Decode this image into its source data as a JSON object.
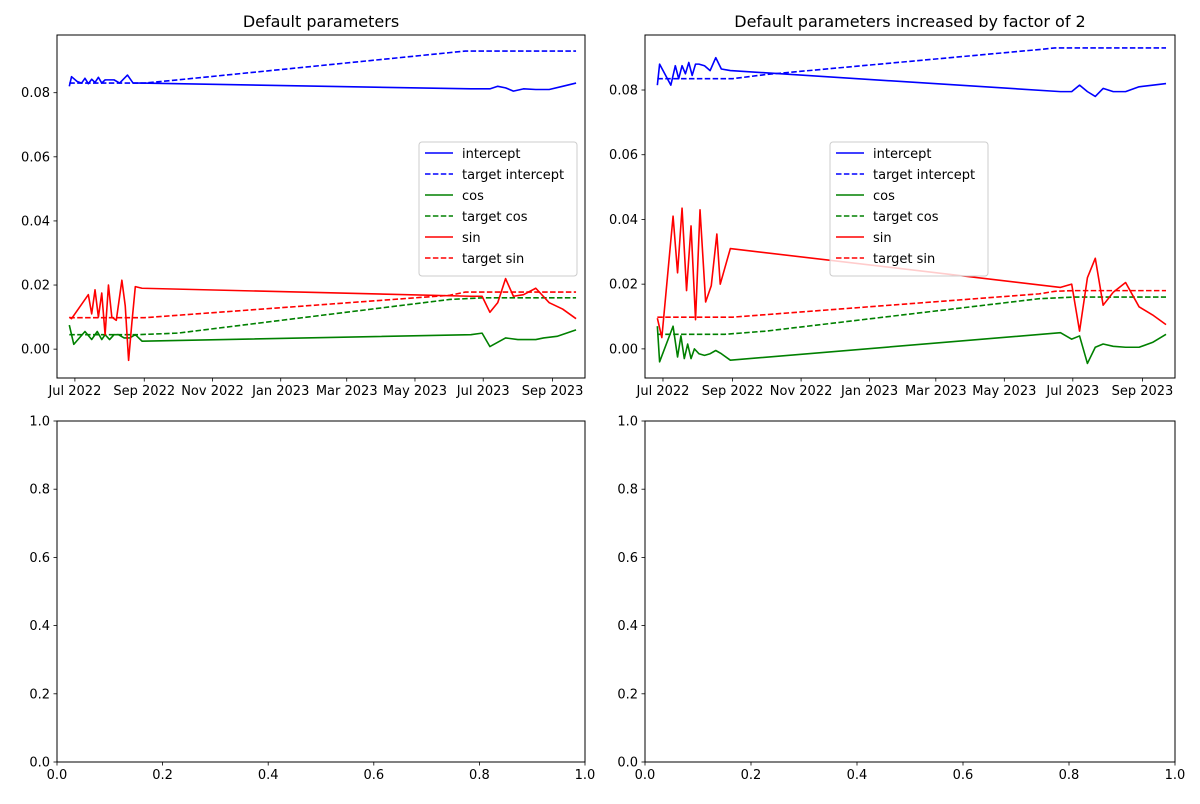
{
  "chart_data": [
    {
      "type": "line",
      "title": "Default parameters",
      "xlabel": "",
      "ylabel": "",
      "x_axis_type": "date",
      "xlim": [
        "2022-06-15",
        "2023-09-30"
      ],
      "ylim": [
        -0.009,
        0.098
      ],
      "x_ticks": [
        "2022-07-01",
        "2022-09-01",
        "2022-11-01",
        "2023-01-01",
        "2023-03-01",
        "2023-05-01",
        "2023-07-01",
        "2023-09-01"
      ],
      "x_tick_labels": [
        "Jul 2022",
        "Sep 2022",
        "Nov 2022",
        "Jan 2023",
        "Mar 2023",
        "May 2023",
        "Jul 2023",
        "Sep 2023"
      ],
      "y_ticks": [
        0.0,
        0.02,
        0.04,
        0.06,
        0.08
      ],
      "y_tick_labels": [
        "0.00",
        "0.02",
        "0.04",
        "0.06",
        "0.08"
      ],
      "grid": false,
      "legend_position": "center-right",
      "series": [
        {
          "name": "intercept",
          "color": "#0000ff",
          "style": "solid",
          "x": [
            "2022-06-26",
            "2022-06-28",
            "2022-07-03",
            "2022-07-07",
            "2022-07-10",
            "2022-07-13",
            "2022-07-16",
            "2022-07-19",
            "2022-07-22",
            "2022-07-25",
            "2022-07-28",
            "2022-07-31",
            "2022-08-05",
            "2022-08-10",
            "2022-08-17",
            "2022-08-22",
            "2022-08-27",
            "2022-08-30",
            "2023-06-20",
            "2023-06-30",
            "2023-07-07",
            "2023-07-14",
            "2023-07-21",
            "2023-07-28",
            "2023-08-06",
            "2023-08-17",
            "2023-08-29",
            "2023-09-10",
            "2023-09-22"
          ],
          "y": [
            0.082,
            0.085,
            0.0835,
            0.083,
            0.0845,
            0.0828,
            0.0842,
            0.0832,
            0.0848,
            0.083,
            0.084,
            0.084,
            0.084,
            0.083,
            0.0855,
            0.083,
            0.083,
            0.083,
            0.0812,
            0.0812,
            0.0812,
            0.082,
            0.0815,
            0.0805,
            0.0812,
            0.081,
            0.081,
            0.082,
            0.083
          ]
        },
        {
          "name": "target intercept",
          "color": "#0000ff",
          "style": "dashed",
          "x": [
            "2022-06-26",
            "2022-09-01",
            "2022-10-01",
            "2023-06-01",
            "2023-06-15",
            "2023-07-01",
            "2023-09-22"
          ],
          "y": [
            0.083,
            0.083,
            0.084,
            0.0925,
            0.093,
            0.093,
            0.093
          ]
        },
        {
          "name": "cos",
          "color": "#008000",
          "style": "solid",
          "x": [
            "2022-06-26",
            "2022-06-30",
            "2022-07-10",
            "2022-07-16",
            "2022-07-21",
            "2022-07-25",
            "2022-07-28",
            "2022-08-01",
            "2022-08-05",
            "2022-08-09",
            "2022-08-14",
            "2022-08-19",
            "2022-08-24",
            "2022-08-30",
            "2023-06-20",
            "2023-06-30",
            "2023-07-07",
            "2023-07-21",
            "2023-08-01",
            "2023-08-17",
            "2023-08-24",
            "2023-09-05",
            "2023-09-22"
          ],
          "y": [
            0.0075,
            0.0015,
            0.0055,
            0.003,
            0.0055,
            0.003,
            0.0045,
            0.003,
            0.0045,
            0.0045,
            0.0035,
            0.0035,
            0.0045,
            0.0025,
            0.0045,
            0.005,
            0.0008,
            0.0035,
            0.003,
            0.003,
            0.0035,
            0.004,
            0.006
          ]
        },
        {
          "name": "target cos",
          "color": "#008000",
          "style": "dashed",
          "x": [
            "2022-06-26",
            "2022-08-25",
            "2022-10-01",
            "2023-06-01",
            "2023-07-01",
            "2023-09-22"
          ],
          "y": [
            0.0045,
            0.0045,
            0.005,
            0.0155,
            0.016,
            0.016
          ]
        },
        {
          "name": "sin",
          "color": "#ff0000",
          "style": "solid",
          "x": [
            "2022-06-26",
            "2022-06-28",
            "2022-07-13",
            "2022-07-16",
            "2022-07-19",
            "2022-07-22",
            "2022-07-25",
            "2022-07-28",
            "2022-07-31",
            "2022-08-03",
            "2022-08-07",
            "2022-08-12",
            "2022-08-15",
            "2022-08-18",
            "2022-08-21",
            "2022-08-24",
            "2022-08-30",
            "2023-06-20",
            "2023-06-30",
            "2023-07-07",
            "2023-07-14",
            "2023-07-21",
            "2023-07-28",
            "2023-08-06",
            "2023-08-17",
            "2023-08-29",
            "2023-09-10",
            "2023-09-22"
          ],
          "y": [
            0.01,
            0.0095,
            0.017,
            0.011,
            0.0185,
            0.01,
            0.0175,
            0.0045,
            0.02,
            0.01,
            0.009,
            0.0215,
            0.0135,
            -0.0035,
            0.0085,
            0.0195,
            0.019,
            0.0165,
            0.0165,
            0.0115,
            0.0145,
            0.022,
            0.0165,
            0.017,
            0.019,
            0.0145,
            0.0125,
            0.0095
          ]
        },
        {
          "name": "target sin",
          "color": "#ff0000",
          "style": "dashed",
          "x": [
            "2022-06-26",
            "2022-09-01",
            "2023-06-01",
            "2023-06-15",
            "2023-07-01",
            "2023-09-22"
          ],
          "y": [
            0.0098,
            0.0098,
            0.0168,
            0.0178,
            0.0178,
            0.0178
          ]
        }
      ]
    },
    {
      "type": "line",
      "title": "Default parameters increased by factor of 2",
      "xlabel": "",
      "ylabel": "",
      "x_axis_type": "date",
      "xlim": [
        "2022-06-15",
        "2023-09-30"
      ],
      "ylim": [
        -0.009,
        0.097
      ],
      "x_ticks": [
        "2022-07-01",
        "2022-09-01",
        "2022-11-01",
        "2023-01-01",
        "2023-03-01",
        "2023-05-01",
        "2023-07-01",
        "2023-09-01"
      ],
      "x_tick_labels": [
        "Jul 2022",
        "Sep 2022",
        "Nov 2022",
        "Jan 2023",
        "Mar 2023",
        "May 2023",
        "Jul 2023",
        "Sep 2023"
      ],
      "y_ticks": [
        0.0,
        0.02,
        0.04,
        0.06,
        0.08
      ],
      "y_tick_labels": [
        "0.00",
        "0.02",
        "0.04",
        "0.06",
        "0.08"
      ],
      "grid": false,
      "legend_position": "center",
      "series": [
        {
          "name": "intercept",
          "color": "#0000ff",
          "style": "solid",
          "x": [
            "2022-06-26",
            "2022-06-28",
            "2022-07-08",
            "2022-07-12",
            "2022-07-15",
            "2022-07-18",
            "2022-07-21",
            "2022-07-24",
            "2022-07-27",
            "2022-07-30",
            "2022-08-02",
            "2022-08-07",
            "2022-08-12",
            "2022-08-17",
            "2022-08-22",
            "2022-08-30",
            "2023-06-20",
            "2023-06-30",
            "2023-07-07",
            "2023-07-14",
            "2023-07-21",
            "2023-07-28",
            "2023-08-06",
            "2023-08-17",
            "2023-08-29",
            "2023-09-10",
            "2023-09-22"
          ],
          "y": [
            0.0815,
            0.088,
            0.0815,
            0.0875,
            0.0835,
            0.0875,
            0.085,
            0.0885,
            0.0845,
            0.088,
            0.088,
            0.0875,
            0.086,
            0.09,
            0.0865,
            0.086,
            0.0795,
            0.0795,
            0.0815,
            0.0795,
            0.078,
            0.0805,
            0.0795,
            0.0795,
            0.081,
            0.0815,
            0.082
          ]
        },
        {
          "name": "target intercept",
          "color": "#0000ff",
          "style": "dashed",
          "x": [
            "2022-06-26",
            "2022-09-01",
            "2022-10-01",
            "2023-06-01",
            "2023-06-15",
            "2023-07-01",
            "2023-09-22"
          ],
          "y": [
            0.0835,
            0.0835,
            0.0848,
            0.0925,
            0.093,
            0.093,
            0.093
          ]
        },
        {
          "name": "cos",
          "color": "#008000",
          "style": "solid",
          "x": [
            "2022-06-26",
            "2022-06-28",
            "2022-07-10",
            "2022-07-14",
            "2022-07-17",
            "2022-07-20",
            "2022-07-23",
            "2022-07-26",
            "2022-07-29",
            "2022-08-02",
            "2022-08-07",
            "2022-08-12",
            "2022-08-17",
            "2022-08-22",
            "2022-08-30",
            "2023-06-20",
            "2023-06-30",
            "2023-07-07",
            "2023-07-14",
            "2023-07-21",
            "2023-07-28",
            "2023-08-06",
            "2023-08-17",
            "2023-08-29",
            "2023-09-10",
            "2023-09-22"
          ],
          "y": [
            0.007,
            -0.004,
            0.007,
            -0.0025,
            0.004,
            -0.003,
            0.0015,
            -0.003,
            0.0,
            -0.0015,
            -0.002,
            -0.0015,
            -0.0005,
            -0.0015,
            -0.0035,
            0.005,
            0.003,
            0.004,
            -0.0045,
            0.0005,
            0.0015,
            0.0008,
            0.0005,
            0.0005,
            0.002,
            0.0045
          ]
        },
        {
          "name": "target cos",
          "color": "#008000",
          "style": "dashed",
          "x": [
            "2022-06-26",
            "2022-08-25",
            "2022-10-01",
            "2023-06-01",
            "2023-07-01",
            "2023-09-22"
          ],
          "y": [
            0.0045,
            0.0045,
            0.0055,
            0.0155,
            0.016,
            0.016
          ]
        },
        {
          "name": "sin",
          "color": "#ff0000",
          "style": "solid",
          "x": [
            "2022-06-26",
            "2022-06-30",
            "2022-07-10",
            "2022-07-14",
            "2022-07-18",
            "2022-07-22",
            "2022-07-26",
            "2022-07-30",
            "2022-08-03",
            "2022-08-08",
            "2022-08-13",
            "2022-08-18",
            "2022-08-21",
            "2022-08-30",
            "2023-06-20",
            "2023-06-30",
            "2023-07-07",
            "2023-07-14",
            "2023-07-21",
            "2023-07-28",
            "2023-08-06",
            "2023-08-17",
            "2023-08-29",
            "2023-09-10",
            "2023-09-22"
          ],
          "y": [
            0.0095,
            0.0035,
            0.041,
            0.0235,
            0.0435,
            0.018,
            0.038,
            0.009,
            0.043,
            0.0145,
            0.0195,
            0.0355,
            0.02,
            0.031,
            0.019,
            0.02,
            0.0055,
            0.022,
            0.028,
            0.0135,
            0.0175,
            0.0205,
            0.013,
            0.0105,
            0.0075
          ]
        },
        {
          "name": "target sin",
          "color": "#ff0000",
          "style": "dashed",
          "x": [
            "2022-06-26",
            "2022-09-01",
            "2023-06-01",
            "2023-06-15",
            "2023-07-01",
            "2023-09-22"
          ],
          "y": [
            0.0098,
            0.0098,
            0.017,
            0.0178,
            0.018,
            0.018
          ]
        }
      ]
    },
    {
      "type": "line",
      "title": "",
      "xlabel": "",
      "ylabel": "",
      "xlim": [
        0,
        1
      ],
      "ylim": [
        0,
        1
      ],
      "x_ticks": [
        0,
        0.2,
        0.4,
        0.6,
        0.8,
        1.0
      ],
      "x_tick_labels": [
        "0.0",
        "0.2",
        "0.4",
        "0.6",
        "0.8",
        "1.0"
      ],
      "y_ticks": [
        0,
        0.2,
        0.4,
        0.6,
        0.8,
        1.0
      ],
      "y_tick_labels": [
        "0.0",
        "0.2",
        "0.4",
        "0.6",
        "0.8",
        "1.0"
      ],
      "grid": false,
      "series": []
    },
    {
      "type": "line",
      "title": "",
      "xlabel": "",
      "ylabel": "",
      "xlim": [
        0,
        1
      ],
      "ylim": [
        0,
        1
      ],
      "x_ticks": [
        0,
        0.2,
        0.4,
        0.6,
        0.8,
        1.0
      ],
      "x_tick_labels": [
        "0.0",
        "0.2",
        "0.4",
        "0.6",
        "0.8",
        "1.0"
      ],
      "y_ticks": [
        0,
        0.2,
        0.4,
        0.6,
        0.8,
        1.0
      ],
      "y_tick_labels": [
        "0.0",
        "0.2",
        "0.4",
        "0.6",
        "0.8",
        "1.0"
      ],
      "grid": false,
      "series": []
    }
  ]
}
